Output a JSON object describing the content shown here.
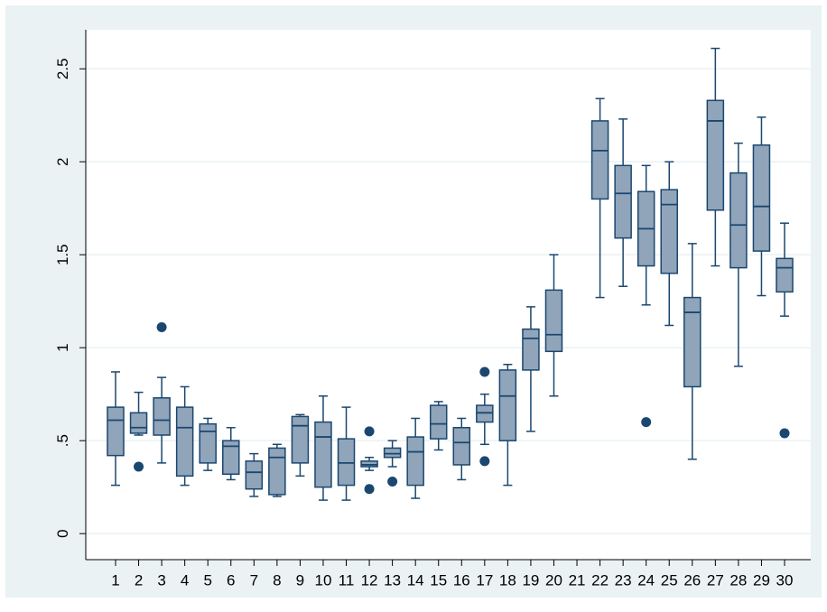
{
  "chart_data": {
    "type": "box",
    "categories": [
      "1",
      "2",
      "3",
      "4",
      "5",
      "6",
      "7",
      "8",
      "9",
      "10",
      "11",
      "12",
      "13",
      "14",
      "15",
      "16",
      "17",
      "18",
      "19",
      "20",
      "21",
      "22",
      "23",
      "24",
      "25",
      "26",
      "27",
      "28",
      "29",
      "30"
    ],
    "min": [
      0.26,
      0.53,
      0.38,
      0.26,
      0.34,
      0.29,
      0.2,
      0.2,
      0.31,
      0.18,
      0.18,
      0.34,
      0.36,
      0.19,
      0.45,
      0.29,
      0.48,
      0.26,
      0.55,
      0.74,
      null,
      1.27,
      1.33,
      1.23,
      1.12,
      0.4,
      1.44,
      0.9,
      1.28,
      1.17
    ],
    "q1": [
      0.42,
      0.54,
      0.53,
      0.31,
      0.38,
      0.32,
      0.24,
      0.21,
      0.38,
      0.25,
      0.26,
      0.36,
      0.41,
      0.26,
      0.51,
      0.37,
      0.6,
      0.5,
      0.88,
      0.98,
      null,
      1.8,
      1.59,
      1.44,
      1.4,
      0.79,
      1.74,
      1.43,
      1.52,
      1.3
    ],
    "median": [
      0.61,
      0.57,
      0.61,
      0.57,
      0.55,
      0.47,
      0.33,
      0.41,
      0.58,
      0.52,
      0.38,
      0.37,
      0.43,
      0.44,
      0.59,
      0.49,
      0.65,
      0.74,
      1.05,
      1.07,
      null,
      2.06,
      1.83,
      1.64,
      1.77,
      1.19,
      2.22,
      1.66,
      1.76,
      1.43
    ],
    "q3": [
      0.68,
      0.65,
      0.73,
      0.68,
      0.59,
      0.5,
      0.39,
      0.46,
      0.63,
      0.6,
      0.51,
      0.39,
      0.46,
      0.52,
      0.69,
      0.57,
      0.69,
      0.88,
      1.1,
      1.31,
      null,
      2.22,
      1.98,
      1.84,
      1.85,
      1.27,
      2.33,
      1.94,
      2.09,
      1.48
    ],
    "max": [
      0.87,
      0.76,
      0.84,
      0.79,
      0.62,
      0.57,
      0.43,
      0.48,
      0.64,
      0.74,
      0.68,
      0.41,
      0.5,
      0.62,
      0.71,
      0.62,
      0.75,
      0.91,
      1.22,
      1.5,
      null,
      2.34,
      2.23,
      1.98,
      2.0,
      1.56,
      2.61,
      2.1,
      2.24,
      1.67
    ],
    "outliers": [
      [],
      [
        0.36
      ],
      [
        1.11
      ],
      [],
      [],
      [],
      [],
      [],
      [],
      [],
      [],
      [
        0.55,
        0.24
      ],
      [
        0.28
      ],
      [],
      [],
      [],
      [
        0.87,
        0.39
      ],
      [],
      [],
      [],
      [],
      [],
      [],
      [
        0.6
      ],
      [],
      [],
      [],
      [],
      [],
      [
        0.54
      ]
    ],
    "color": "#90a4ba",
    "edge_color": "#1a476f",
    "ylim": [
      -0.14,
      2.71
    ],
    "yticks": [
      0,
      {
        "value": 0.5,
        "label": ".5"
      },
      1,
      1.5,
      2,
      2.5
    ],
    "grid": true
  }
}
